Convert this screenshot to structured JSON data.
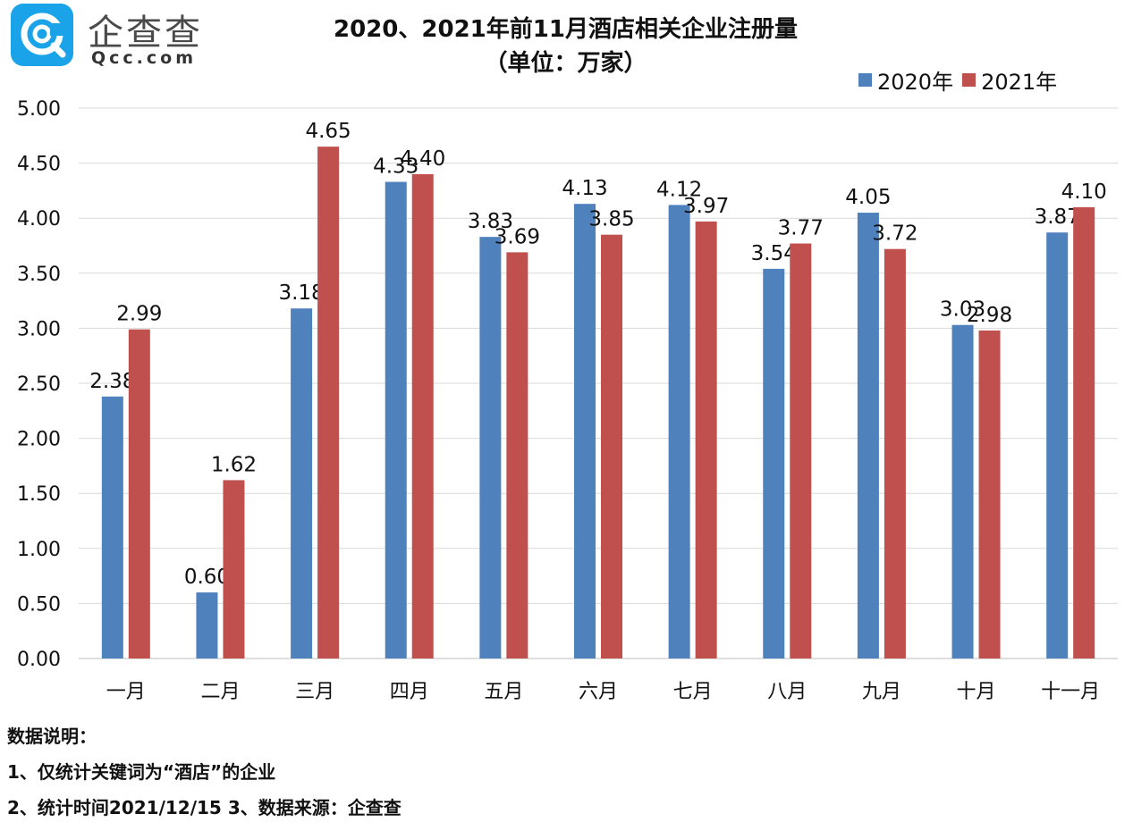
{
  "logo": {
    "name_cn": "企查查",
    "name_en": "Qcc.com",
    "brand_color": "#1aa3e8"
  },
  "notes": {
    "heading": "数据说明：",
    "line1": "1、仅统计关键词为“酒店”的企业",
    "line2": "2、统计时间2021/12/15  3、数据来源：企查查"
  },
  "chart_data": {
    "type": "bar",
    "title": "2020、2021年前11月酒店相关企业注册量",
    "subtitle": "（单位：万家）",
    "categories": [
      "一月",
      "二月",
      "三月",
      "四月",
      "五月",
      "六月",
      "七月",
      "八月",
      "九月",
      "十月",
      "十一月"
    ],
    "series": [
      {
        "name": "2020年",
        "color": "#4f81bd",
        "values": [
          2.38,
          0.6,
          3.18,
          4.33,
          3.83,
          4.13,
          4.12,
          3.54,
          4.05,
          3.03,
          3.87
        ]
      },
      {
        "name": "2021年",
        "color": "#c0504d",
        "values": [
          2.99,
          1.62,
          4.65,
          4.4,
          3.69,
          3.85,
          3.97,
          3.77,
          3.72,
          2.98,
          4.1
        ]
      }
    ],
    "yticks": [
      "0.00",
      "0.50",
      "1.00",
      "1.50",
      "2.00",
      "2.50",
      "3.00",
      "3.50",
      "4.00",
      "4.50",
      "5.00"
    ],
    "ylim": [
      0,
      5
    ],
    "grid": true,
    "legend_position": "top-right"
  }
}
